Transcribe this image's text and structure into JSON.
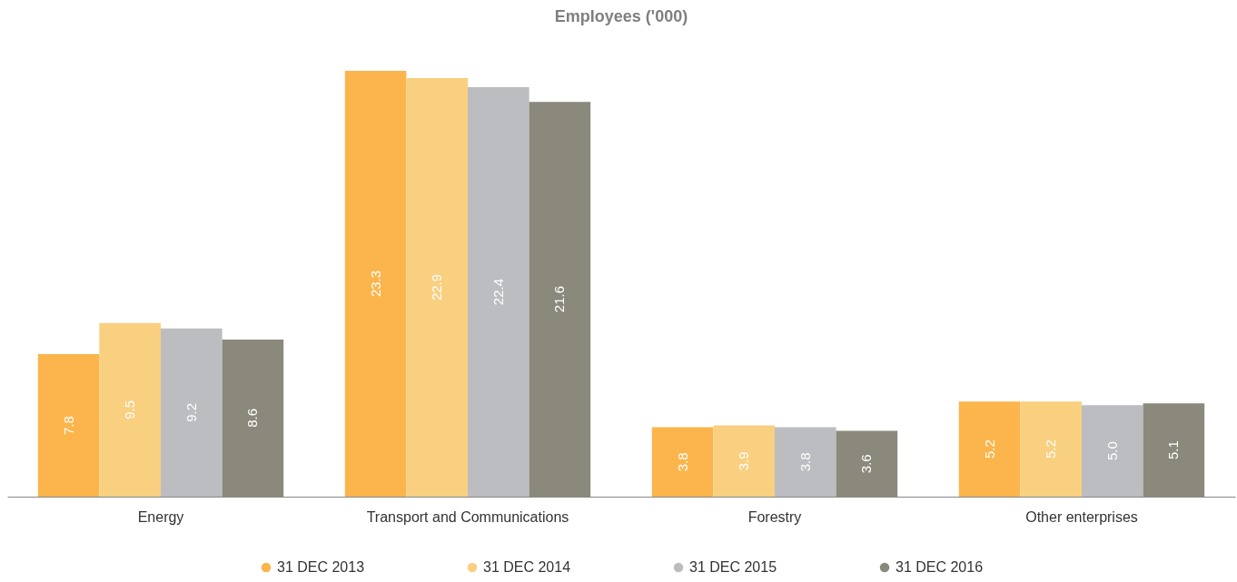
{
  "chart_data": {
    "type": "bar",
    "title": "Employees ('000)",
    "categories": [
      "Energy",
      "Transport and Communications",
      "Forestry",
      "Other enterprises"
    ],
    "series": [
      {
        "name": "31 DEC 2013",
        "color": "#fbb54c",
        "values": [
          7.8,
          23.3,
          3.8,
          5.2
        ],
        "value_labels": [
          "7.8",
          "23.3",
          "3.8",
          "5.2"
        ]
      },
      {
        "name": "31 DEC 2014",
        "color": "#f9cf80",
        "values": [
          9.5,
          22.9,
          3.9,
          5.2
        ],
        "value_labels": [
          "9.5",
          "22.9",
          "3.9",
          "5.2"
        ]
      },
      {
        "name": "31 DEC 2015",
        "color": "#bcbdc0",
        "values": [
          9.2,
          22.4,
          3.8,
          5.0
        ],
        "value_labels": [
          "9.2",
          "22.4",
          "3.8",
          "5.0"
        ]
      },
      {
        "name": "31 DEC 2016",
        "color": "#8a897c",
        "values": [
          8.6,
          21.6,
          3.6,
          5.1
        ],
        "value_labels": [
          "8.6",
          "21.6",
          "3.6",
          "5.1"
        ]
      }
    ],
    "legend": "bottom"
  }
}
